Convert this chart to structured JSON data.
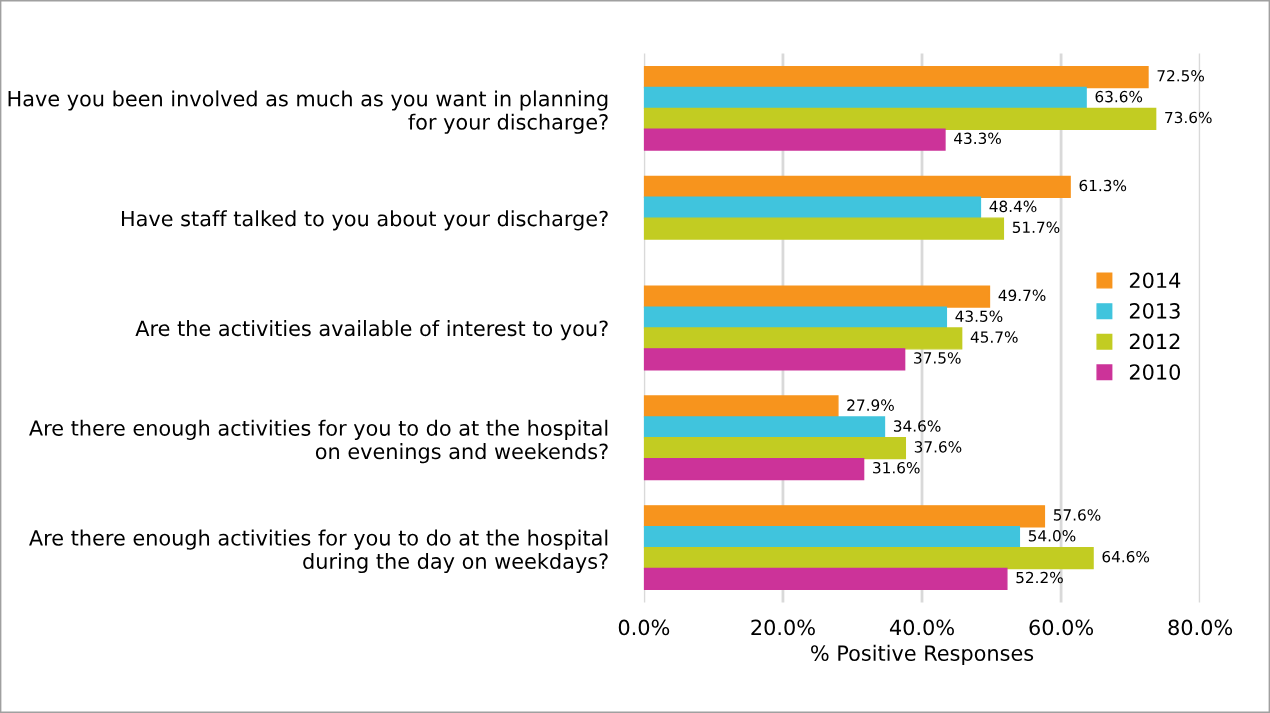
{
  "chart_data": {
    "type": "bar",
    "orientation": "horizontal",
    "xlabel": "% Positive Responses",
    "categories": [
      "Have you been involved as much as you want in planning for your discharge?",
      "Have staff talked to you about your discharge?",
      "Are the activities available of interest to you?",
      "Are there enough activities for you to do at the hospital on evenings and weekends?",
      "Are there enough activities for you to do at the hospital during the day on weekdays?"
    ],
    "series": [
      {
        "name": "2014",
        "color": "#f7941d",
        "values": [
          72.5,
          61.3,
          49.7,
          27.9,
          57.6
        ],
        "value_labels": [
          "72.5%",
          "61.3%",
          "49.7%",
          "27.9%",
          "57.6%"
        ]
      },
      {
        "name": "2013",
        "color": "#40c4dd",
        "values": [
          63.6,
          48.4,
          43.5,
          34.6,
          54.0
        ],
        "value_labels": [
          "63.6%",
          "48.4%",
          "43.5%",
          "34.6%",
          "54.0%"
        ]
      },
      {
        "name": "2012",
        "color": "#c2cc22",
        "values": [
          73.6,
          51.7,
          45.7,
          37.6,
          64.6
        ],
        "value_labels": [
          "73.6%",
          "51.7%",
          "45.7%",
          "37.6%",
          "64.6%"
        ]
      },
      {
        "name": "2010",
        "color": "#cc3399",
        "values": [
          43.3,
          null,
          37.5,
          31.6,
          52.2
        ],
        "value_labels": [
          "43.3%",
          null,
          "37.5%",
          "31.6%",
          "52.2%"
        ]
      }
    ],
    "xlim": [
      0,
      80
    ],
    "xticks": [
      {
        "value": 0,
        "label": "0.0%"
      },
      {
        "value": 20,
        "label": "20.0%"
      },
      {
        "value": 40,
        "label": "40.0%"
      },
      {
        "value": 60,
        "label": "60.0%"
      },
      {
        "value": 80,
        "label": "80.0%"
      }
    ],
    "grid": "x",
    "legend": "right"
  }
}
